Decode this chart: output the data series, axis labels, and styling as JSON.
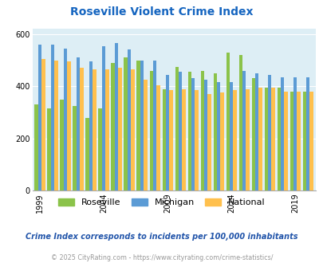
{
  "title": "Roseville Violent Crime Index",
  "subtitle": "Crime Index corresponds to incidents per 100,000 inhabitants",
  "copyright": "© 2025 CityRating.com - https://www.cityrating.com/crime-statistics/",
  "years": [
    1999,
    2000,
    2001,
    2002,
    2003,
    2004,
    2005,
    2006,
    2007,
    2008,
    2009,
    2010,
    2011,
    2012,
    2013,
    2014,
    2015,
    2016,
    2017,
    2018,
    2019,
    2020
  ],
  "roseville": [
    330,
    315,
    350,
    325,
    280,
    315,
    490,
    510,
    500,
    460,
    390,
    475,
    455,
    460,
    450,
    530,
    520,
    430,
    395,
    395,
    380,
    380
  ],
  "michigan": [
    560,
    560,
    545,
    510,
    495,
    555,
    565,
    540,
    500,
    500,
    445,
    455,
    430,
    425,
    415,
    415,
    460,
    450,
    445,
    435,
    435,
    435
  ],
  "national": [
    505,
    500,
    495,
    470,
    465,
    465,
    470,
    465,
    425,
    405,
    385,
    390,
    385,
    370,
    375,
    385,
    390,
    395,
    395,
    380,
    380,
    380
  ],
  "bar_colors": {
    "roseville": "#8bc34a",
    "michigan": "#5b9bd5",
    "national": "#ffc04d"
  },
  "bg_color": "#ddeef5",
  "ylim": [
    0,
    620
  ],
  "yticks": [
    0,
    200,
    400,
    600
  ],
  "title_color": "#1565c0",
  "subtitle_color": "#2255aa",
  "copyright_color": "#999999",
  "legend_labels": [
    "Roseville",
    "Michigan",
    "National"
  ]
}
